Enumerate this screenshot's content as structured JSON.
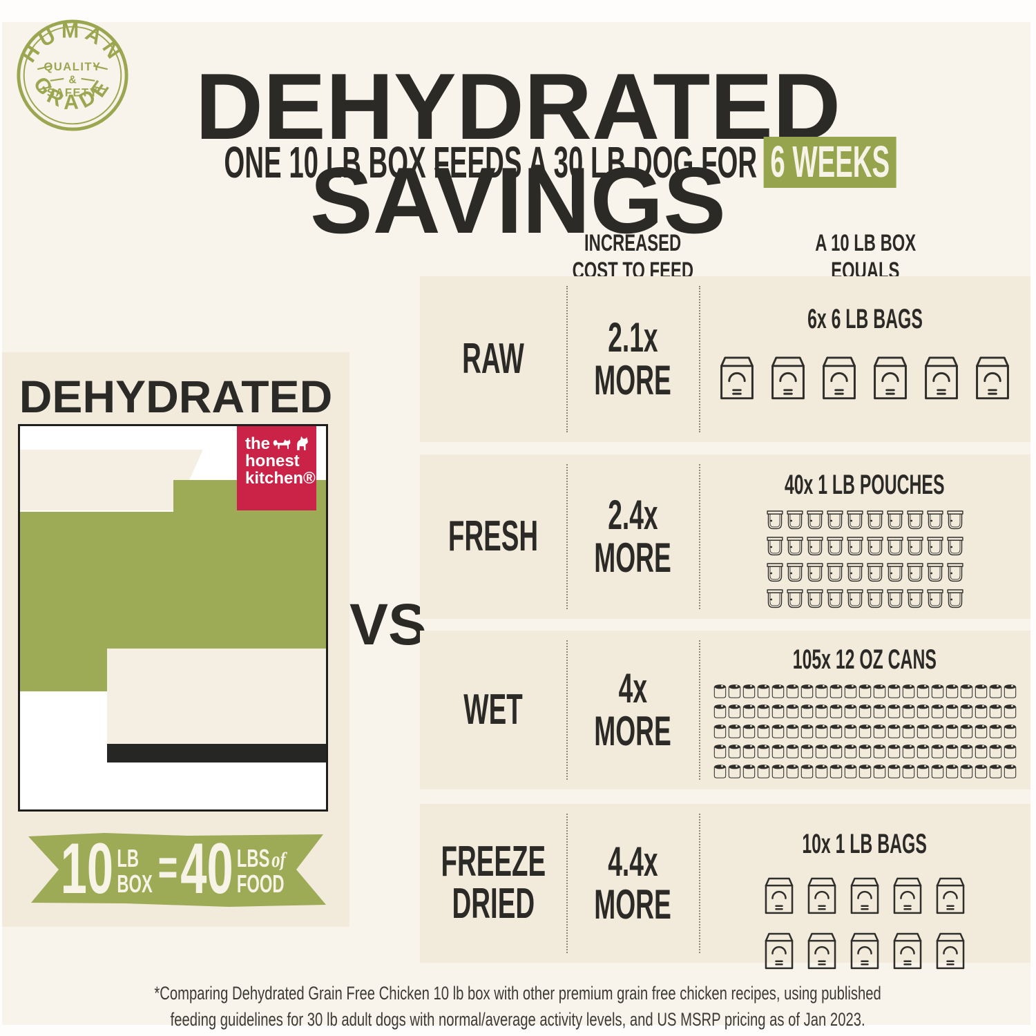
{
  "colors": {
    "page_bg": "#f8f4eb",
    "panel_bg": "#f2ebdc",
    "accent_green": "#9dab57",
    "highlight_green": "#95a44d",
    "badge_green": "#9aa750",
    "logo_red": "#cb2347",
    "text_dark": "#2b2a26",
    "banner_text": "#f7f3e6",
    "icon_stroke": "#2f2e2a",
    "black_bar": "#262624",
    "cream": "#f4efe2",
    "dotted": "#8c8779",
    "white": "#fefdfb"
  },
  "badge": {
    "top": "HUMAN",
    "bottom": "GRADE",
    "middle_line1": "QUALITY",
    "middle_amp": "&",
    "middle_line2": "SAFETY"
  },
  "header": {
    "title": "DEHYDRATED SAVINGS",
    "subtitle_prefix": "ONE 10 LB BOX FEEDS A 30 LB DOG FOR",
    "subtitle_highlight": "6 WEEKS"
  },
  "columns": {
    "cost_header_line1": "INCREASED",
    "cost_header_line2": "COST TO FEED",
    "equals_header_line1": "A 10 LB BOX",
    "equals_header_line2": "EQUALS"
  },
  "left": {
    "label": "DEHYDRATED",
    "vs": "VS",
    "logo": {
      "line1": "the",
      "line2": "honest",
      "line3": "kitchen®"
    },
    "banner": {
      "value1": "10",
      "unit1_line1": "LB",
      "unit1_line2": "BOX",
      "equals": "=",
      "value2": "40",
      "unit2_line1": "LBS",
      "unit2_script": "of",
      "unit2_line2": "FOOD"
    }
  },
  "rows": [
    {
      "label": "RAW",
      "cost": "2.1x",
      "more": "MORE",
      "equals": "6x 6 LB BAGS",
      "icon": "bag",
      "count": 6,
      "per_row": 6
    },
    {
      "label": "FRESH",
      "cost": "2.4x",
      "more": "MORE",
      "equals": "40x 1 LB POUCHES",
      "icon": "pouch",
      "count": 40,
      "per_row": 10
    },
    {
      "label": "WET",
      "cost": "4x",
      "more": "MORE",
      "equals": "105x 12 OZ CANS",
      "icon": "can",
      "count": 105,
      "per_row": 21
    },
    {
      "label": "FREEZE DRIED",
      "cost": "4.4x",
      "more": "MORE",
      "equals": "10x 1 LB BAGS",
      "icon": "bag",
      "count": 10,
      "per_row": 5
    }
  ],
  "footnote": {
    "line1": "*Comparing Dehydrated Grain Free Chicken 10 lb box with other premium grain free chicken recipes, using published",
    "line2": "feeding guidelines for 30 lb adult dogs with normal/average activity levels, and US MSRP pricing as of Jan 2023."
  },
  "chart_data": {
    "type": "table",
    "title": "DEHYDRATED SAVINGS",
    "subtitle": "ONE 10 LB BOX FEEDS A 30 LB DOG FOR 6 WEEKS",
    "categories": [
      "RAW",
      "FRESH",
      "WET",
      "FREEZE DRIED"
    ],
    "series": [
      {
        "name": "Increased cost to feed (x more)",
        "values": [
          2.1,
          2.4,
          4,
          4.4
        ]
      },
      {
        "name": "A 10 lb box equals (package count)",
        "values": [
          6,
          40,
          105,
          10
        ]
      }
    ],
    "package_labels": [
      "6x 6 LB BAGS",
      "40x 1 LB POUCHES",
      "105x 12 OZ CANS",
      "10x 1 LB BAGS"
    ],
    "dehydrated_equivalence": "10 LB BOX = 40 LBS of FOOD"
  }
}
